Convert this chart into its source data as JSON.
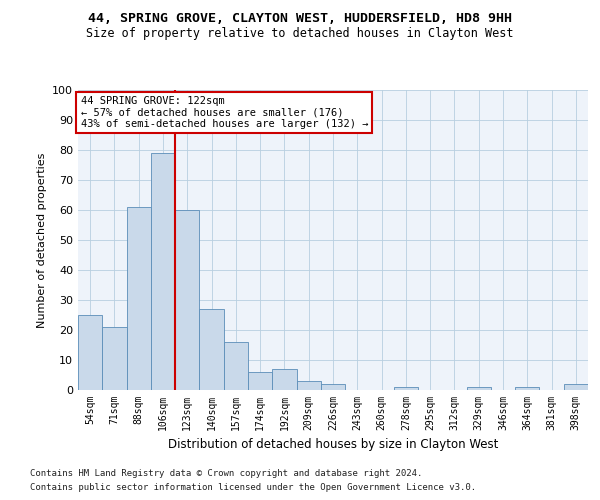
{
  "title1": "44, SPRING GROVE, CLAYTON WEST, HUDDERSFIELD, HD8 9HH",
  "title2": "Size of property relative to detached houses in Clayton West",
  "xlabel": "Distribution of detached houses by size in Clayton West",
  "ylabel": "Number of detached properties",
  "categories": [
    "54sqm",
    "71sqm",
    "88sqm",
    "106sqm",
    "123sqm",
    "140sqm",
    "157sqm",
    "174sqm",
    "192sqm",
    "209sqm",
    "226sqm",
    "243sqm",
    "260sqm",
    "278sqm",
    "295sqm",
    "312sqm",
    "329sqm",
    "346sqm",
    "364sqm",
    "381sqm",
    "398sqm"
  ],
  "values": [
    25,
    21,
    61,
    79,
    60,
    27,
    16,
    6,
    7,
    3,
    2,
    0,
    0,
    1,
    0,
    0,
    1,
    0,
    1,
    0,
    2
  ],
  "bar_color": "#c9d9ea",
  "bar_edge_color": "#5b8db8",
  "grid_color": "#b8cfe0",
  "background_color": "#eef3fa",
  "annotation_line1": "44 SPRING GROVE: 122sqm",
  "annotation_line2": "← 57% of detached houses are smaller (176)",
  "annotation_line3": "43% of semi-detached houses are larger (132) →",
  "vline_color": "#cc0000",
  "box_color": "#cc0000",
  "footnote1": "Contains HM Land Registry data © Crown copyright and database right 2024.",
  "footnote2": "Contains public sector information licensed under the Open Government Licence v3.0.",
  "ylim": [
    0,
    100
  ]
}
